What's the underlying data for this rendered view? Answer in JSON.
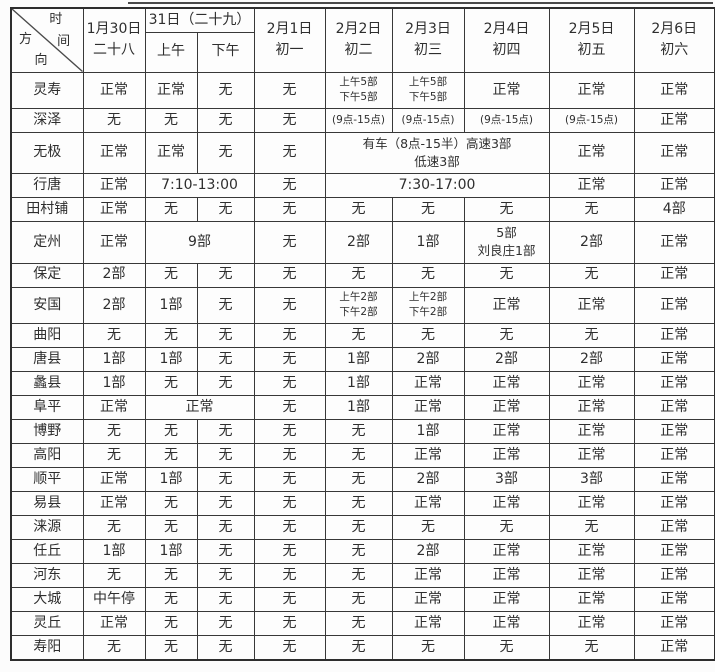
{
  "table": {
    "corner": {
      "time_char1": "时",
      "time_char2": "间",
      "dir_char1": "方",
      "dir_char2": "向"
    },
    "columns": [
      {
        "lines": [
          "1月30日",
          "二十八"
        ]
      },
      {
        "title": "31日（二十九）",
        "sub": [
          "上午",
          "下午"
        ]
      },
      {
        "lines": [
          "2月1日",
          "初一"
        ]
      },
      {
        "lines": [
          "2月2日",
          "初二"
        ]
      },
      {
        "lines": [
          "2月3日",
          "初三"
        ]
      },
      {
        "lines": [
          "2月4日",
          "初四"
        ]
      },
      {
        "lines": [
          "2月5日",
          "初五"
        ]
      },
      {
        "lines": [
          "2月6日",
          "初六"
        ]
      }
    ],
    "rows": [
      {
        "place": "灵寿",
        "cells": [
          {
            "t": "正常"
          },
          {
            "t": "正常"
          },
          {
            "t": "无"
          },
          {
            "t": "无"
          },
          {
            "lines": [
              "上午5部",
              "下午5部"
            ],
            "small": true
          },
          {
            "lines": [
              "上午5部",
              "下午5部"
            ],
            "small": true
          },
          {
            "t": "正常"
          },
          {
            "t": "正常"
          },
          {
            "t": "正常"
          }
        ]
      },
      {
        "place": "深泽",
        "cells": [
          {
            "t": "无"
          },
          {
            "t": "无"
          },
          {
            "t": "无"
          },
          {
            "t": "无"
          },
          {
            "t": "(9点-15点)",
            "small": true
          },
          {
            "t": "(9点-15点)",
            "small": true
          },
          {
            "t": "(9点-15点)",
            "small": true
          },
          {
            "t": "(9点-15点)",
            "small": true
          },
          {
            "t": "正常"
          }
        ]
      },
      {
        "place": "无极",
        "cells": [
          {
            "t": "正常"
          },
          {
            "t": "正常"
          },
          {
            "t": "无"
          },
          {
            "t": "无"
          },
          {
            "lines": [
              "有车（8点-15半）高速3部",
              "低速3部"
            ],
            "span": 3
          },
          {
            "t": "正常"
          },
          {
            "t": "正常"
          }
        ]
      },
      {
        "place": "行唐",
        "cells": [
          {
            "t": "正常"
          },
          {
            "t": "7:10-13:00",
            "span": 2
          },
          {
            "t": "无"
          },
          {
            "t": "7:30-17:00",
            "span": 3
          },
          {
            "t": "正常"
          },
          {
            "t": "正常"
          }
        ]
      },
      {
        "place": "田村铺",
        "cells": [
          {
            "t": "正常"
          },
          {
            "t": "无"
          },
          {
            "t": "无"
          },
          {
            "t": "无"
          },
          {
            "t": "无"
          },
          {
            "t": "无"
          },
          {
            "t": "无"
          },
          {
            "t": "无"
          },
          {
            "t": "4部"
          }
        ]
      },
      {
        "place": "定州",
        "cells": [
          {
            "t": "正常"
          },
          {
            "t": "9部",
            "span": 2
          },
          {
            "t": "无"
          },
          {
            "t": "2部"
          },
          {
            "t": "1部"
          },
          {
            "lines": [
              "5部",
              "刘良庄1部"
            ]
          },
          {
            "t": "2部"
          },
          {
            "t": "正常"
          }
        ]
      },
      {
        "place": "保定",
        "cells": [
          {
            "t": "2部"
          },
          {
            "t": "无"
          },
          {
            "t": "无"
          },
          {
            "t": "无"
          },
          {
            "t": "无"
          },
          {
            "t": "无"
          },
          {
            "t": "无"
          },
          {
            "t": "无"
          },
          {
            "t": "正常"
          }
        ]
      },
      {
        "place": "安国",
        "cells": [
          {
            "t": "2部"
          },
          {
            "t": "1部"
          },
          {
            "t": "无"
          },
          {
            "t": "无"
          },
          {
            "lines": [
              "上午2部",
              "下午2部"
            ],
            "small": true
          },
          {
            "lines": [
              "上午2部",
              "下午2部"
            ],
            "small": true
          },
          {
            "t": "正常"
          },
          {
            "t": "正常"
          },
          {
            "t": "正常"
          }
        ]
      },
      {
        "place": "曲阳",
        "cells": [
          {
            "t": "无"
          },
          {
            "t": "无"
          },
          {
            "t": "无"
          },
          {
            "t": "无"
          },
          {
            "t": "无"
          },
          {
            "t": "无"
          },
          {
            "t": "无"
          },
          {
            "t": "无"
          },
          {
            "t": "正常"
          }
        ]
      },
      {
        "place": "唐县",
        "cells": [
          {
            "t": "1部"
          },
          {
            "t": "1部"
          },
          {
            "t": "无"
          },
          {
            "t": "无"
          },
          {
            "t": "1部"
          },
          {
            "t": "2部"
          },
          {
            "t": "2部"
          },
          {
            "t": "2部"
          },
          {
            "t": "正常"
          }
        ]
      },
      {
        "place": "蠡县",
        "cells": [
          {
            "t": "1部"
          },
          {
            "t": "无"
          },
          {
            "t": "无"
          },
          {
            "t": "无"
          },
          {
            "t": "1部"
          },
          {
            "t": "正常"
          },
          {
            "t": "正常"
          },
          {
            "t": "正常"
          },
          {
            "t": "正常"
          }
        ]
      },
      {
        "place": "阜平",
        "cells": [
          {
            "t": "正常"
          },
          {
            "t": "正常",
            "span": 2
          },
          {
            "t": "无"
          },
          {
            "t": "1部"
          },
          {
            "t": "正常"
          },
          {
            "t": "正常"
          },
          {
            "t": "正常"
          },
          {
            "t": "正常"
          }
        ]
      },
      {
        "place": "博野",
        "cells": [
          {
            "t": "无"
          },
          {
            "t": "无"
          },
          {
            "t": "无"
          },
          {
            "t": "无"
          },
          {
            "t": "无"
          },
          {
            "t": "1部"
          },
          {
            "t": "正常"
          },
          {
            "t": "正常"
          },
          {
            "t": "正常"
          }
        ]
      },
      {
        "place": "高阳",
        "cells": [
          {
            "t": "无"
          },
          {
            "t": "无"
          },
          {
            "t": "无"
          },
          {
            "t": "无"
          },
          {
            "t": "无"
          },
          {
            "t": "正常"
          },
          {
            "t": "正常"
          },
          {
            "t": "正常"
          },
          {
            "t": "正常"
          }
        ]
      },
      {
        "place": "顺平",
        "cells": [
          {
            "t": "正常"
          },
          {
            "t": "1部"
          },
          {
            "t": "无"
          },
          {
            "t": "无"
          },
          {
            "t": "无"
          },
          {
            "t": "2部"
          },
          {
            "t": "3部"
          },
          {
            "t": "3部"
          },
          {
            "t": "正常"
          }
        ]
      },
      {
        "place": "易县",
        "cells": [
          {
            "t": "正常"
          },
          {
            "t": "无"
          },
          {
            "t": "无"
          },
          {
            "t": "无"
          },
          {
            "t": "无"
          },
          {
            "t": "正常"
          },
          {
            "t": "正常"
          },
          {
            "t": "正常"
          },
          {
            "t": "正常"
          }
        ]
      },
      {
        "place": "涞源",
        "cells": [
          {
            "t": "无"
          },
          {
            "t": "无"
          },
          {
            "t": "无"
          },
          {
            "t": "无"
          },
          {
            "t": "无"
          },
          {
            "t": "无"
          },
          {
            "t": "无"
          },
          {
            "t": "无"
          },
          {
            "t": "正常"
          }
        ]
      },
      {
        "place": "任丘",
        "cells": [
          {
            "t": "1部"
          },
          {
            "t": "1部"
          },
          {
            "t": "无"
          },
          {
            "t": "无"
          },
          {
            "t": "无"
          },
          {
            "t": "2部"
          },
          {
            "t": "正常"
          },
          {
            "t": "正常"
          },
          {
            "t": "正常"
          }
        ]
      },
      {
        "place": "河东",
        "cells": [
          {
            "t": "无"
          },
          {
            "t": "无"
          },
          {
            "t": "无"
          },
          {
            "t": "无"
          },
          {
            "t": "无"
          },
          {
            "t": "正常"
          },
          {
            "t": "正常"
          },
          {
            "t": "正常"
          },
          {
            "t": "正常"
          }
        ]
      },
      {
        "place": "大城",
        "cells": [
          {
            "t": "中午停"
          },
          {
            "t": "无"
          },
          {
            "t": "无"
          },
          {
            "t": "无"
          },
          {
            "t": "无"
          },
          {
            "t": "正常"
          },
          {
            "t": "正常"
          },
          {
            "t": "正常"
          },
          {
            "t": "正常"
          }
        ]
      },
      {
        "place": "灵丘",
        "cells": [
          {
            "t": "正常"
          },
          {
            "t": "无"
          },
          {
            "t": "无"
          },
          {
            "t": "无"
          },
          {
            "t": "无"
          },
          {
            "t": "正常"
          },
          {
            "t": "正常"
          },
          {
            "t": "正常"
          },
          {
            "t": "正常"
          }
        ]
      },
      {
        "place": "寿阳",
        "cells": [
          {
            "t": "无"
          },
          {
            "t": "无"
          },
          {
            "t": "无"
          },
          {
            "t": "无"
          },
          {
            "t": "无"
          },
          {
            "t": "无"
          },
          {
            "t": "无"
          },
          {
            "t": "无"
          },
          {
            "t": "正常"
          }
        ]
      }
    ]
  },
  "colors": {
    "border": "#383838",
    "background": "#fcfcfc",
    "text": "#2e2e2e"
  }
}
